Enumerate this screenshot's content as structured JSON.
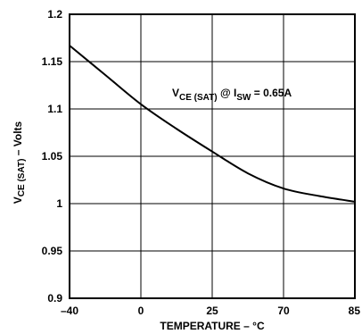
{
  "chart_data": {
    "type": "line",
    "xlabel": "TEMPERATURE – °C",
    "ylabel": {
      "main": "V",
      "sub": "CE (SAT)",
      "suffix": " – Volts"
    },
    "x_ticks": [
      "-40",
      "0",
      "25",
      "70",
      "85"
    ],
    "y_ticks": [
      "0.9",
      "0.95",
      "1",
      "1.05",
      "1.1",
      "1.15",
      "1.2"
    ],
    "ylim": [
      0.9,
      1.2
    ],
    "grid": true,
    "annotation": {
      "part1": "V",
      "sub1": "CE (SAT)",
      "part2": " @ I",
      "sub2": "SW",
      "part3": " = 0.65A"
    },
    "series": [
      {
        "x": [
          "-40",
          "-20",
          "0",
          "12.5",
          "25",
          "47.5",
          "70",
          "77.5",
          "85"
        ],
        "y": [
          1.167,
          1.136,
          1.105,
          1.079,
          1.055,
          1.032,
          1.016,
          1.008,
          1.002
        ]
      }
    ]
  }
}
